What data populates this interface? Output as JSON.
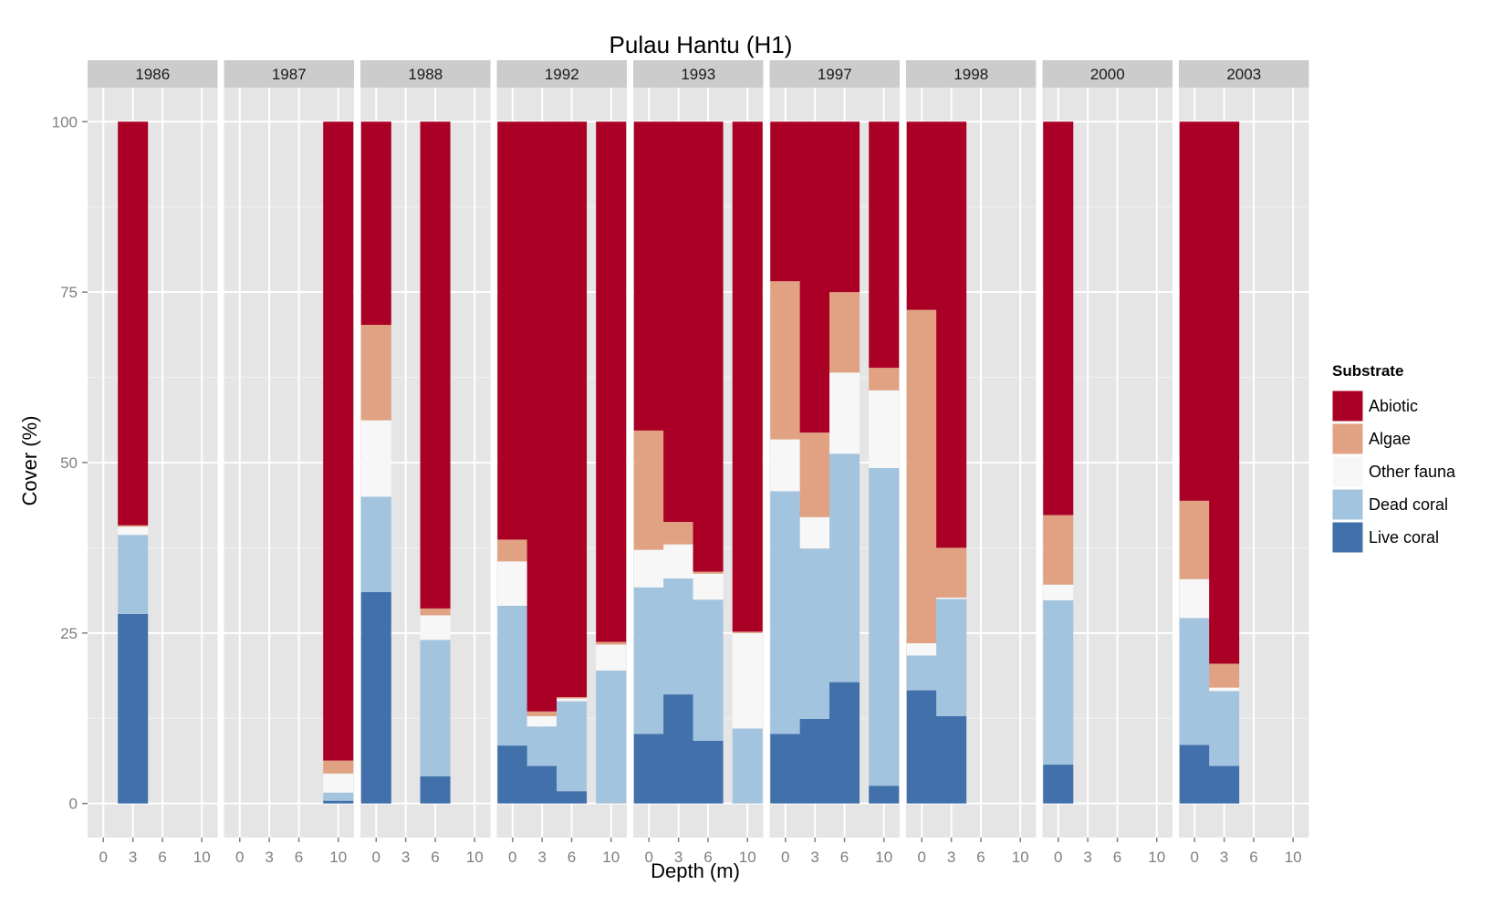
{
  "chart_data": {
    "type": "bar",
    "stacked": true,
    "title": "Pulau Hantu (H1)",
    "xlabel": "Depth (m)",
    "ylabel": "Cover (%)",
    "ylim": [
      0,
      100
    ],
    "yticks": [
      0,
      25,
      50,
      75,
      100
    ],
    "xticks": [
      0,
      3,
      6,
      10
    ],
    "categories": [
      0,
      3,
      6,
      10
    ],
    "grid": true,
    "legend": {
      "title": "Substrate",
      "position": "right",
      "order": [
        "Abiotic",
        "Algae",
        "Other fauna",
        "Dead coral",
        "Live coral"
      ]
    },
    "colors": {
      "Live coral": "#4170ab",
      "Dead coral": "#a3c4de",
      "Other fauna": "#f7f7f7",
      "Algae": "#e0a282",
      "Abiotic": "#ab0026"
    },
    "panels": [
      {
        "label": "1986",
        "bars": [
          {
            "depth": 3,
            "Live coral": 27.8,
            "Dead coral": 11.6,
            "Other fauna": 1.2,
            "Algae": 0.2,
            "Abiotic": 59.2
          }
        ]
      },
      {
        "label": "1987",
        "bars": [
          {
            "depth": 10,
            "Live coral": 0.4,
            "Dead coral": 1.2,
            "Other fauna": 2.8,
            "Algae": 1.9,
            "Abiotic": 93.7
          }
        ]
      },
      {
        "label": "1988",
        "bars": [
          {
            "depth": 0,
            "Live coral": 31.0,
            "Dead coral": 14.0,
            "Other fauna": 11.2,
            "Algae": 14.0,
            "Abiotic": 29.8
          },
          {
            "depth": 6,
            "Live coral": 4.0,
            "Dead coral": 20.0,
            "Other fauna": 3.6,
            "Algae": 1.0,
            "Abiotic": 71.4
          }
        ]
      },
      {
        "label": "1992",
        "bars": [
          {
            "depth": 0,
            "Live coral": 8.5,
            "Dead coral": 20.5,
            "Other fauna": 6.5,
            "Algae": 3.2,
            "Abiotic": 61.3
          },
          {
            "depth": 3,
            "Live coral": 5.5,
            "Dead coral": 5.8,
            "Other fauna": 1.5,
            "Algae": 0.7,
            "Abiotic": 86.5
          },
          {
            "depth": 6,
            "Live coral": 1.8,
            "Dead coral": 13.2,
            "Other fauna": 0.4,
            "Algae": 0.2,
            "Abiotic": 84.4
          },
          {
            "depth": 10,
            "Live coral": 0.0,
            "Dead coral": 19.5,
            "Other fauna": 3.8,
            "Algae": 0.4,
            "Abiotic": 76.3
          }
        ]
      },
      {
        "label": "1993",
        "bars": [
          {
            "depth": 0,
            "Live coral": 10.2,
            "Dead coral": 21.5,
            "Other fauna": 5.5,
            "Algae": 17.5,
            "Abiotic": 45.3
          },
          {
            "depth": 3,
            "Live coral": 16.0,
            "Dead coral": 17.0,
            "Other fauna": 5.0,
            "Algae": 3.3,
            "Abiotic": 58.7
          },
          {
            "depth": 6,
            "Live coral": 9.2,
            "Dead coral": 20.7,
            "Other fauna": 3.8,
            "Algae": 0.3,
            "Abiotic": 66.0
          },
          {
            "depth": 10,
            "Live coral": 0.0,
            "Dead coral": 11.0,
            "Other fauna": 14.0,
            "Algae": 0.2,
            "Abiotic": 74.8
          }
        ]
      },
      {
        "label": "1997",
        "bars": [
          {
            "depth": 0,
            "Live coral": 10.2,
            "Dead coral": 35.6,
            "Other fauna": 7.6,
            "Algae": 23.2,
            "Abiotic": 23.4
          },
          {
            "depth": 3,
            "Live coral": 12.4,
            "Dead coral": 25.0,
            "Other fauna": 4.6,
            "Algae": 12.4,
            "Abiotic": 45.6
          },
          {
            "depth": 6,
            "Live coral": 17.8,
            "Dead coral": 33.5,
            "Other fauna": 11.9,
            "Algae": 11.8,
            "Abiotic": 25.0
          },
          {
            "depth": 10,
            "Live coral": 2.6,
            "Dead coral": 46.6,
            "Other fauna": 11.4,
            "Algae": 3.3,
            "Abiotic": 36.1
          }
        ]
      },
      {
        "label": "1998",
        "bars": [
          {
            "depth": 0,
            "Live coral": 16.6,
            "Dead coral": 5.1,
            "Other fauna": 1.8,
            "Algae": 48.9,
            "Abiotic": 27.6
          },
          {
            "depth": 3,
            "Live coral": 12.8,
            "Dead coral": 17.2,
            "Other fauna": 0.2,
            "Algae": 7.3,
            "Abiotic": 62.5
          }
        ]
      },
      {
        "label": "2000",
        "bars": [
          {
            "depth": 0,
            "Live coral": 5.7,
            "Dead coral": 24.1,
            "Other fauna": 2.3,
            "Algae": 10.2,
            "Abiotic": 57.7
          }
        ]
      },
      {
        "label": "2003",
        "bars": [
          {
            "depth": 0,
            "Live coral": 8.6,
            "Dead coral": 18.6,
            "Other fauna": 5.7,
            "Algae": 11.5,
            "Abiotic": 55.6
          },
          {
            "depth": 3,
            "Live coral": 5.5,
            "Dead coral": 11.0,
            "Other fauna": 0.5,
            "Algae": 3.5,
            "Abiotic": 79.5
          }
        ]
      }
    ]
  }
}
